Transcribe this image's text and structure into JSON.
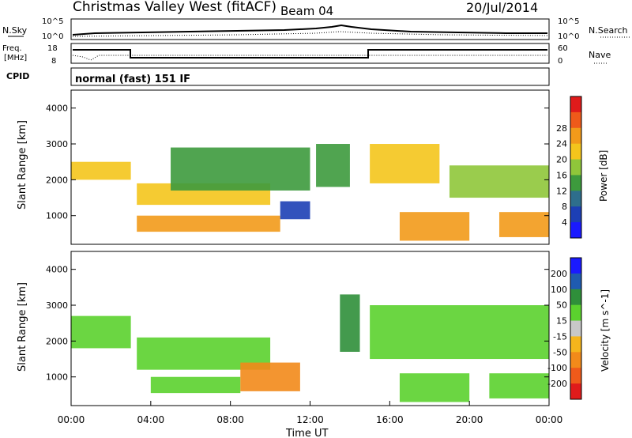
{
  "header": {
    "title": "Christmas Valley West (fitACF)",
    "beam": "Beam 04",
    "date": "20/Jul/2014"
  },
  "top_panels": {
    "nsky_label": "N.Sky",
    "nsearch_label": "N.Search",
    "nsky_ticks": [
      "10^5",
      "10^0"
    ],
    "nsearch_ticks": [
      "10^5",
      "10^0"
    ],
    "freq_label_1": "Freq.",
    "freq_label_2": "[MHz]",
    "freq_ticks": [
      "18",
      "8"
    ],
    "nave_label": "Nave",
    "nave_ticks": [
      "60",
      "0"
    ],
    "cpid_label": "CPID",
    "cpid_value": "normal (fast) 151 IF"
  },
  "chart_data": [
    {
      "type": "heatmap",
      "name": "power",
      "ylabel": "Slant Range [km]",
      "y_ticks": [
        "1000",
        "2000",
        "3000",
        "4000"
      ],
      "ylim": [
        200,
        4500
      ],
      "colorbar_label": "Power [dB]",
      "colorbar_ticks": [
        "4",
        "8",
        "12",
        "16",
        "20",
        "24",
        "28"
      ],
      "colorscale": [
        "#1a1aff",
        "#1c3fb5",
        "#2e6e8c",
        "#3d9a3d",
        "#8fc63a",
        "#f4c51c",
        "#f29a1a",
        "#ef5a1a",
        "#e01b1b"
      ],
      "bands": [
        {
          "t0": 0.0,
          "t1": 3.0,
          "r0": 2000,
          "r1": 2500,
          "value": 24
        },
        {
          "t0": 3.3,
          "t1": 10.0,
          "r0": 1300,
          "r1": 1900,
          "value": 24
        },
        {
          "t0": 3.3,
          "t1": 10.5,
          "r0": 550,
          "r1": 1000,
          "value": 26
        },
        {
          "t0": 10.5,
          "t1": 12.0,
          "r0": 900,
          "r1": 1400,
          "value": 6
        },
        {
          "t0": 5.0,
          "t1": 12.0,
          "r0": 1700,
          "r1": 2900,
          "value": 14
        },
        {
          "t0": 12.3,
          "t1": 14.0,
          "r0": 1800,
          "r1": 3000,
          "value": 16
        },
        {
          "t0": 15.0,
          "t1": 18.5,
          "r0": 1900,
          "r1": 3000,
          "value": 22
        },
        {
          "t0": 16.5,
          "t1": 20.0,
          "r0": 300,
          "r1": 1100,
          "value": 26
        },
        {
          "t0": 19.0,
          "t1": 24.0,
          "r0": 1500,
          "r1": 2400,
          "value": 18
        },
        {
          "t0": 21.5,
          "t1": 24.0,
          "r0": 400,
          "r1": 1100,
          "value": 27
        }
      ]
    },
    {
      "type": "heatmap",
      "name": "velocity",
      "ylabel": "Slant Range [km]",
      "y_ticks": [
        "1000",
        "2000",
        "3000",
        "4000"
      ],
      "ylim": [
        200,
        4500
      ],
      "xlabel": "Time UT",
      "x_ticks": [
        "00:00",
        "04:00",
        "08:00",
        "12:00",
        "16:00",
        "20:00",
        "00:00"
      ],
      "colorbar_label": "Velocity [m s^-1]",
      "colorbar_ticks": [
        "200",
        "100",
        "50",
        "15",
        "-15",
        "-50",
        "-100",
        "-200"
      ],
      "colorscale": [
        "#1a1aff",
        "#1f5bb0",
        "#2f8f3a",
        "#5bd12e",
        "#c8c8c8",
        "#f5b51c",
        "#f28a1a",
        "#ef5a1a",
        "#e01b1b"
      ],
      "bands": [
        {
          "t0": 0.0,
          "t1": 3.0,
          "r0": 1800,
          "r1": 2700,
          "value": 0
        },
        {
          "t0": 3.3,
          "t1": 10.0,
          "r0": 1200,
          "r1": 2100,
          "value": 0
        },
        {
          "t0": 4.0,
          "t1": 8.5,
          "r0": 550,
          "r1": 1000,
          "value": 0
        },
        {
          "t0": 8.5,
          "t1": 11.5,
          "r0": 600,
          "r1": 1400,
          "value": -60
        },
        {
          "t0": 13.5,
          "t1": 14.5,
          "r0": 1700,
          "r1": 3300,
          "value": 40
        },
        {
          "t0": 16.5,
          "t1": 20.0,
          "r0": 300,
          "r1": 1100,
          "value": 0
        },
        {
          "t0": 15.0,
          "t1": 24.0,
          "r0": 1500,
          "r1": 3000,
          "value": 0
        },
        {
          "t0": 21.0,
          "t1": 24.0,
          "r0": 400,
          "r1": 1100,
          "value": 0
        }
      ]
    }
  ]
}
